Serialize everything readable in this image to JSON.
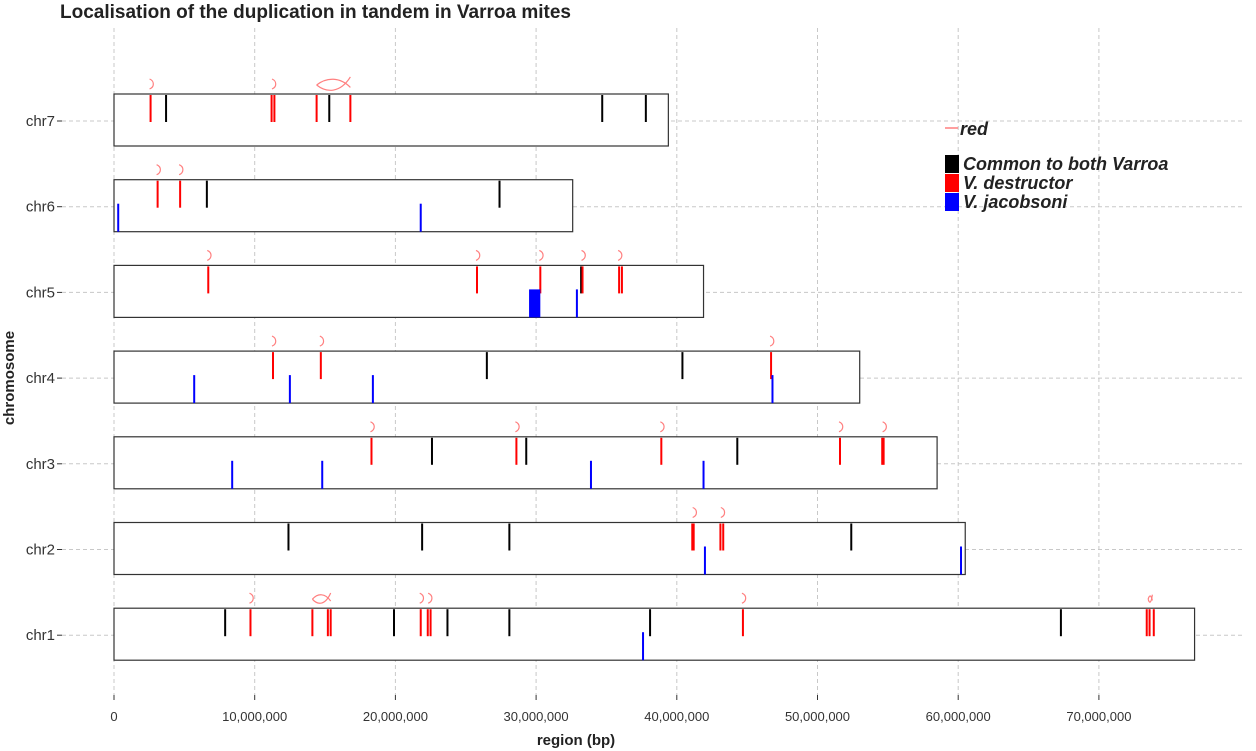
{
  "chart_data": {
    "type": "genome-track",
    "title": "Localisation of the duplication in tandem in Varroa mites",
    "xlabel": "region (bp)",
    "ylabel": "chromosome",
    "xlim": [
      0,
      78000000
    ],
    "x_ticks": [
      0,
      10000000,
      20000000,
      30000000,
      40000000,
      50000000,
      60000000,
      70000000
    ],
    "x_tick_labels": [
      "0",
      "10,000,000",
      "20,000,000",
      "30,000,000",
      "40,000,000",
      "50,000,000",
      "60,000,000",
      "70,000,000"
    ],
    "grid": true,
    "legend_position": "right",
    "colors": {
      "common": "#000000",
      "destructor": "#ff0000",
      "jacobsoni": "#0000ff",
      "arc": "#ff7f7f",
      "frame": "#333333",
      "grid": "#c8c8c8"
    },
    "legend": {
      "arc_label": "red",
      "items": [
        {
          "key": "common",
          "label": "Common to both Varroa"
        },
        {
          "key": "destructor",
          "label": "V. destructor"
        },
        {
          "key": "jacobsoni",
          "label": "V. jacobsoni"
        }
      ]
    },
    "chromosomes": [
      {
        "name": "chr7",
        "length": 39400000,
        "common": [
          3700000,
          15300000,
          34700000,
          37800000
        ],
        "destructor": [
          2600000,
          11200000,
          11400000,
          14400000,
          16800000
        ],
        "jacobsoni": [],
        "arcs": [
          [
            2600000,
            2600000
          ],
          [
            11300000,
            11300000
          ],
          [
            14400000,
            16800000
          ]
        ]
      },
      {
        "name": "chr6",
        "length": 32600000,
        "common": [
          6600000,
          27400000
        ],
        "destructor": [
          3100000,
          4700000
        ],
        "jacobsoni": [
          300000,
          21800000
        ],
        "arcs": [
          [
            3100000,
            3100000
          ],
          [
            4700000,
            4700000
          ]
        ]
      },
      {
        "name": "chr5",
        "length": 41900000,
        "common": [
          33200000
        ],
        "destructor": [
          6700000,
          25800000,
          30300000,
          33300000,
          35900000,
          36100000
        ],
        "jacobsoni": [
          [
            29500000,
            30300000
          ],
          32900000
        ],
        "arcs": [
          [
            6700000,
            6700000
          ],
          [
            25800000,
            25800000
          ],
          [
            30300000,
            30300000
          ],
          [
            33300000,
            33300000
          ],
          [
            35900000,
            36100000
          ]
        ]
      },
      {
        "name": "chr4",
        "length": 53000000,
        "common": [
          26500000,
          40400000
        ],
        "destructor": [
          11300000,
          14700000,
          46700000
        ],
        "jacobsoni": [
          5700000,
          12500000,
          18400000,
          46800000
        ],
        "arcs": [
          [
            11300000,
            11300000
          ],
          [
            14700000,
            14700000
          ],
          [
            46700000,
            46700000
          ]
        ]
      },
      {
        "name": "chr3",
        "length": 58500000,
        "common": [
          22600000,
          29300000,
          44300000
        ],
        "destructor": [
          18300000,
          28600000,
          38900000,
          51600000,
          54600000,
          54700000
        ],
        "jacobsoni": [
          8400000,
          14800000,
          33900000,
          41900000
        ],
        "arcs": [
          [
            18300000,
            18300000
          ],
          [
            28600000,
            28600000
          ],
          [
            38900000,
            38900000
          ],
          [
            51600000,
            51600000
          ],
          [
            54700000,
            54700000
          ]
        ]
      },
      {
        "name": "chr2",
        "length": 60500000,
        "common": [
          12400000,
          21900000,
          28100000,
          52400000
        ],
        "destructor": [
          41100000,
          41200000,
          43100000,
          43300000
        ],
        "jacobsoni": [
          42000000,
          60200000
        ],
        "arcs": [
          [
            41200000,
            41200000
          ],
          [
            43200000,
            43200000
          ]
        ]
      },
      {
        "name": "chr1",
        "length": 76800000,
        "common": [
          7900000,
          19900000,
          23700000,
          28100000,
          38100000,
          67300000
        ],
        "destructor": [
          9700000,
          14100000,
          15200000,
          15400000,
          21800000,
          22300000,
          22500000,
          44700000,
          73400000,
          73600000,
          73900000
        ],
        "jacobsoni": [
          37600000
        ],
        "arcs": [
          [
            9700000,
            9700000
          ],
          [
            14100000,
            15400000
          ],
          [
            21800000,
            21800000
          ],
          [
            22400000,
            22400000
          ],
          [
            44700000,
            44700000
          ],
          [
            73500000,
            73800000
          ]
        ]
      }
    ]
  }
}
